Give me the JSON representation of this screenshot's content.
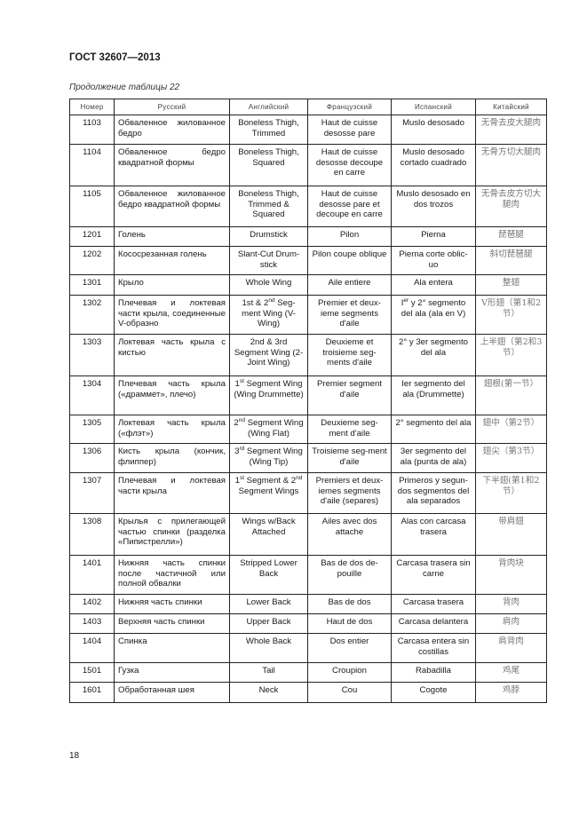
{
  "header": {
    "doc_code": "ГОСТ 32607—2013"
  },
  "caption": "Продолжение таблицы 22",
  "table": {
    "columns": [
      "Номер",
      "Русский",
      "Английский",
      "Французский",
      "Испанский",
      "Китайский"
    ],
    "rows": [
      [
        "1103",
        "Обваленное жилованное бедро",
        "Boneless Thigh, Trimmed",
        "Haut de cuisse desosse pare",
        "Muslo desosado",
        "无骨去皮大腿肉"
      ],
      [
        "1104",
        "Обваленное бедро квадратной формы",
        "Boneless Thigh, Squared",
        "Haut de cuisse desosse decoupe en carre",
        "Muslo desosado cortado cuadrado",
        "无骨方切大腿肉"
      ],
      [
        "1105",
        "Обваленное жилованное бедро квадратной формы",
        "Boneless Thigh, Trimmed & Squared",
        "Haut de cuisse desosse pare et decoupe en carre",
        "Muslo desosado en dos trozos",
        "无骨去皮方切大腿肉"
      ],
      [
        "1201",
        "Голень",
        "Drumstick",
        "Pilon",
        "Pierna",
        "琵琶腿"
      ],
      [
        "1202",
        "Кососрезанная голень",
        "Slant-Cut Drum-stick",
        "Pilon coupe oblique",
        "Pierna corte oblic-uo",
        "斜切琵琶腿"
      ],
      [
        "1301",
        "Крыло",
        "Whole Wing",
        "Aile entiere",
        "Ala entera",
        "整翅"
      ],
      [
        "1302",
        "Плечевая и локтевая части крыла, соединенные V-образно",
        "1st & 2{nd} Seg-ment Wing (V-Wing)",
        "Premier et deux-ieme segments d'aile",
        "I{er} y 2° segmento del ala (ala en V)",
        "V形翅（第1和2节）"
      ],
      [
        "1303",
        "Локтевая часть крыла с кистью",
        "2nd & 3rd Segment Wing (2-Joint Wing)",
        "Deuxieme et troisieme seg-ments d'aile",
        "2° y 3er segmento del ala",
        "上半翅（第2和3节）"
      ],
      [
        "1304",
        "Плечевая часть крыла («драммет», плечо)",
        "1{st} Segment Wing (Wing Drummette)",
        "Premier segment d'aile",
        "Ier segmento del ala (Drummette)",
        "翅根(第一节）"
      ],
      [
        "1305",
        "Локтевая часть крыла («флэт»)",
        "2{nd} Segment Wing (Wing Flat)",
        "Deuxieme seg-ment d'aile",
        "2° segmento del ala",
        "翅中（第2节）"
      ],
      [
        "1306",
        "Кисть крыла (кончик, флиппер)",
        "3{rd} Segment Wing (Wing Tip)",
        "Troisieme seg-ment d'aile",
        "3er segmento del ala (punta de ala)",
        "翅尖（第3节）"
      ],
      [
        "1307",
        "Плечевая и локтевая части крыла",
        "1{st} Segment & 2{nd} Segment Wings",
        "Premiers et deux-iemes segments d'aile (separes)",
        "Primeros y segun-dos segmentos del ala separados",
        "下半翅(第1和2节）"
      ],
      [
        "1308",
        "Крылья с прилегающей частью спинки (разделка «Пипистрелли»)",
        "Wings w/Back Attached",
        "Ailes avec dos attache",
        "Alas con carcasa trasera",
        "带肩翅"
      ],
      [
        "1401",
        "Нижняя часть спинки после частичной или полной обвалки",
        "Stripped Lower Back",
        "Bas de dos de-pouille",
        "Carcasa trasera sin carne",
        "背肉块"
      ],
      [
        "1402",
        "Нижняя часть спинки",
        "Lower Back",
        "Bas de dos",
        "Carcasa trasera",
        "背肉"
      ],
      [
        "1403",
        "Верхняя часть спинки",
        "Upper Back",
        "Haut de dos",
        "Carcasa delantera",
        "肩肉"
      ],
      [
        "1404",
        "Спинка",
        "Whole Back",
        "Dos entier",
        "Carcasa entera sin costillas",
        "肩背肉"
      ],
      [
        "1501",
        "Гузка",
        "Tail",
        "Croupion",
        "Rabadilla",
        "鸡尾"
      ],
      [
        "1601",
        "Обработанная шея",
        "Neck",
        "Cou",
        "Cogote",
        "鸡脖"
      ]
    ]
  },
  "footer": {
    "page_number": "18"
  }
}
